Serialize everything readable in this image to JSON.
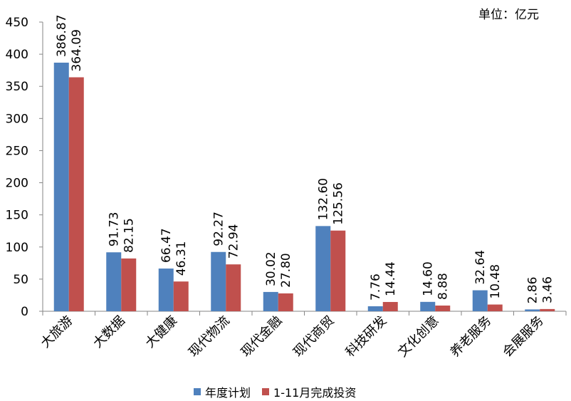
{
  "unit_label": "单位：亿元",
  "colors": {
    "series1": "#4F81BD",
    "series2": "#C0504D",
    "axis": "#868686"
  },
  "chart_data": {
    "type": "bar",
    "categories": [
      "大旅游",
      "大数据",
      "大健康",
      "现代物流",
      "现代金融",
      "现代商贸",
      "科技研发",
      "文化创意",
      "养老服务",
      "会展服务"
    ],
    "series": [
      {
        "name": "年度计划",
        "values": [
          386.87,
          91.73,
          66.47,
          92.27,
          30.02,
          132.6,
          7.76,
          14.6,
          32.64,
          2.86
        ]
      },
      {
        "name": "1-11月完成投资",
        "values": [
          364.09,
          82.15,
          46.31,
          72.94,
          27.8,
          125.56,
          14.44,
          8.88,
          10.48,
          3.46
        ]
      }
    ],
    "data_labels": [
      [
        "386.87",
        "91.73",
        "66.47",
        "92.27",
        "30.02",
        "132.60",
        "7.76",
        "14.60",
        "32.64",
        "2.86"
      ],
      [
        "364.09",
        "82.15",
        "46.31",
        "72.94",
        "27.80",
        "125.56",
        "14.44",
        "8.88",
        "10.48",
        "3.46"
      ]
    ],
    "ylim": [
      0,
      450
    ],
    "yticks": [
      0,
      50,
      100,
      150,
      200,
      250,
      300,
      350,
      400,
      450
    ],
    "grid": false,
    "legend_position": "bottom"
  }
}
